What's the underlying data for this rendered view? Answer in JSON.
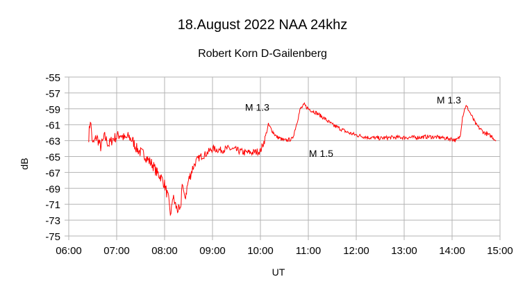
{
  "chart_data": {
    "type": "line",
    "title": "18.August 2022  NAA 24khz",
    "subtitle": "Robert Korn D-Gailenberg",
    "xlabel": "UT",
    "ylabel": "dB",
    "xlim": [
      "06:00",
      "15:00"
    ],
    "ylim": [
      -75,
      -55
    ],
    "x_ticks": [
      "06:00",
      "07:00",
      "08:00",
      "09:00",
      "10:00",
      "11:00",
      "12:00",
      "13:00",
      "14:00",
      "15:00"
    ],
    "y_ticks": [
      -55,
      -57,
      -59,
      -61,
      -63,
      -65,
      -67,
      -69,
      -71,
      -73,
      -75
    ],
    "grid": true,
    "legend": "none",
    "line_color": "#ff0000",
    "grid_color": "#b3b3b3",
    "series": [
      {
        "x": [
          "06:25",
          "06:27",
          "06:30",
          "06:35",
          "06:40",
          "06:45",
          "06:50",
          "06:55",
          "07:00",
          "07:05",
          "07:10",
          "07:15",
          "07:20",
          "07:25",
          "07:30",
          "07:35",
          "07:40",
          "07:45",
          "07:50",
          "07:55",
          "08:00",
          "08:05",
          "08:08",
          "08:10",
          "08:15",
          "08:20",
          "08:22",
          "08:25",
          "08:30",
          "08:35",
          "08:40",
          "08:45",
          "08:50",
          "09:00",
          "09:10",
          "09:20",
          "09:30",
          "09:40",
          "09:50",
          "10:00",
          "10:05",
          "10:10",
          "10:15",
          "10:20",
          "10:30",
          "10:40",
          "10:45",
          "10:50",
          "10:55",
          "11:00",
          "11:10",
          "11:20",
          "11:30",
          "11:40",
          "11:50",
          "12:00",
          "12:15",
          "12:30",
          "12:45",
          "13:00",
          "13:15",
          "13:30",
          "13:45",
          "14:00",
          "14:05",
          "14:10",
          "14:13",
          "14:17",
          "14:20",
          "14:25",
          "14:30",
          "14:40",
          "14:50",
          "14:55"
        ],
        "y": [
          -62.5,
          -60.3,
          -63.5,
          -62.5,
          -63.8,
          -62.5,
          -63.5,
          -62.8,
          -62.5,
          -62.2,
          -62.8,
          -62.5,
          -63.0,
          -64.0,
          -64.5,
          -64.8,
          -65.5,
          -66.0,
          -67.0,
          -67.5,
          -68.5,
          -70.5,
          -72.5,
          -70.0,
          -71.5,
          -72.0,
          -68.0,
          -70.5,
          -68.0,
          -66.5,
          -65.5,
          -65.0,
          -64.8,
          -64.0,
          -64.2,
          -64.0,
          -64.2,
          -64.5,
          -64.5,
          -64.3,
          -63.0,
          -61.0,
          -61.8,
          -62.5,
          -63.0,
          -62.8,
          -61.0,
          -59.0,
          -58.5,
          -59.0,
          -59.5,
          -60.2,
          -61.0,
          -61.5,
          -62.0,
          -62.3,
          -62.6,
          -62.7,
          -62.6,
          -62.6,
          -62.6,
          -62.5,
          -62.6,
          -62.8,
          -63.0,
          -62.5,
          -60.0,
          -58.6,
          -59.0,
          -60.0,
          -61.0,
          -62.0,
          -62.5,
          -63.0
        ]
      }
    ],
    "annotations": [
      {
        "text": "M 1.3",
        "x": "09:56",
        "y": -58.8
      },
      {
        "text": "M 1.5",
        "x": "11:16",
        "y": -64.6
      },
      {
        "text": "M 1.3",
        "x": "13:56",
        "y": -57.9
      }
    ]
  }
}
